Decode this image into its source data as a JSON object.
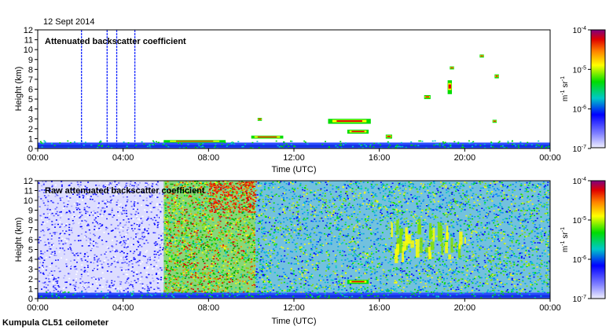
{
  "date_label": "12 Sept 2014",
  "footer_label": "Kumpula CL51 ceilometer",
  "colors": {
    "colormap": [
      "#f0f0ff",
      "#0000ff",
      "#00c8c8",
      "#00dd00",
      "#ffff00",
      "#ff8000",
      "#e00000",
      "#800080"
    ]
  },
  "chart_data": [
    {
      "type": "heatmap",
      "title": "Attenuated backscatter coefficient",
      "xlabel": "Time (UTC)",
      "ylabel": "Height (km)",
      "x_ticks": [
        "00:00",
        "04:00",
        "08:00",
        "12:00",
        "16:00",
        "20:00",
        "00:00"
      ],
      "y_ticks": [
        "0",
        "1",
        "2",
        "3",
        "4",
        "5",
        "6",
        "7",
        "8",
        "9",
        "10",
        "11",
        "12"
      ],
      "xlim": [
        0,
        24
      ],
      "ylim": [
        0,
        12
      ],
      "colorbar": {
        "scale": "log",
        "min_label": "10",
        "min_exp": "-7",
        "max_label": "10",
        "max_exp": "-4",
        "ticks": [
          {
            "base": "10",
            "exp": "-7",
            "value": 1e-07
          },
          {
            "base": "10",
            "exp": "-6",
            "value": 1e-06
          },
          {
            "base": "10",
            "exp": "-5",
            "value": 1e-05
          },
          {
            "base": "10",
            "exp": "-4",
            "value": 0.0001
          }
        ],
        "unit_a": "m",
        "unit_a_exp": "-1",
        "unit_b": "sr",
        "unit_b_exp": "-1"
      },
      "features": [
        {
          "kind": "boundary_layer",
          "t_start": 0,
          "t_end": 24,
          "h_top": 0.6
        },
        {
          "kind": "vertical_streak",
          "t": 2.05,
          "h_top": 12
        },
        {
          "kind": "vertical_streak",
          "t": 3.25,
          "h_top": 12
        },
        {
          "kind": "vertical_streak",
          "t": 3.7,
          "h_top": 12
        },
        {
          "kind": "vertical_streak",
          "t": 4.55,
          "h_top": 12
        },
        {
          "kind": "cloud",
          "t_start": 5.9,
          "t_end": 8.8,
          "h_low": 0.6,
          "h_high": 0.85
        },
        {
          "kind": "cloud",
          "t_start": 10.3,
          "t_end": 10.5,
          "h_low": 2.8,
          "h_high": 3.1
        },
        {
          "kind": "cloud",
          "t_start": 10.0,
          "t_end": 11.5,
          "h_low": 1.0,
          "h_high": 1.3
        },
        {
          "kind": "cloud",
          "t_start": 13.6,
          "t_end": 15.6,
          "h_low": 2.5,
          "h_high": 3.0
        },
        {
          "kind": "cloud",
          "t_start": 14.5,
          "t_end": 15.5,
          "h_low": 1.5,
          "h_high": 1.9
        },
        {
          "kind": "cloud",
          "t_start": 16.3,
          "t_end": 16.6,
          "h_low": 1.0,
          "h_high": 1.4
        },
        {
          "kind": "cloud",
          "t_start": 18.1,
          "t_end": 18.4,
          "h_low": 5.0,
          "h_high": 5.4
        },
        {
          "kind": "cloud",
          "t_start": 19.2,
          "t_end": 19.4,
          "h_low": 5.5,
          "h_high": 6.9
        },
        {
          "kind": "cloud",
          "t_start": 19.3,
          "t_end": 19.5,
          "h_low": 8.0,
          "h_high": 8.3
        },
        {
          "kind": "cloud",
          "t_start": 20.7,
          "t_end": 20.9,
          "h_low": 9.2,
          "h_high": 9.5
        },
        {
          "kind": "cloud",
          "t_start": 21.4,
          "t_end": 21.6,
          "h_low": 7.1,
          "h_high": 7.5
        },
        {
          "kind": "cloud",
          "t_start": 21.3,
          "t_end": 21.5,
          "h_low": 2.6,
          "h_high": 2.9
        }
      ]
    },
    {
      "type": "heatmap",
      "title": "Raw attenuated backscatter coefficient",
      "xlabel": "Time (UTC)",
      "ylabel": "Height (km)",
      "x_ticks": [
        "00:00",
        "04:00",
        "08:00",
        "12:00",
        "16:00",
        "20:00",
        "00:00"
      ],
      "y_ticks": [
        "0",
        "1",
        "2",
        "3",
        "4",
        "5",
        "6",
        "7",
        "8",
        "9",
        "10",
        "11",
        "12"
      ],
      "xlim": [
        0,
        24
      ],
      "ylim": [
        0,
        12
      ],
      "colorbar": {
        "scale": "log",
        "min_label": "10",
        "min_exp": "-7",
        "max_label": "10",
        "max_exp": "-4",
        "ticks": [
          {
            "base": "10",
            "exp": "-7",
            "value": 1e-07
          },
          {
            "base": "10",
            "exp": "-6",
            "value": 1e-06
          },
          {
            "base": "10",
            "exp": "-5",
            "value": 1e-05
          },
          {
            "base": "10",
            "exp": "-4",
            "value": 0.0001
          }
        ],
        "unit_a": "m",
        "unit_a_exp": "-1",
        "unit_b": "sr",
        "unit_b_exp": "-1"
      },
      "regimes": [
        {
          "t_start": 0,
          "t_end": 5.9,
          "level": "low_noise"
        },
        {
          "t_start": 5.9,
          "t_end": 10.2,
          "level": "high_noise"
        },
        {
          "t_start": 10.2,
          "t_end": 24,
          "level": "mid_noise"
        }
      ],
      "features": [
        {
          "kind": "boundary_layer",
          "t_start": 0,
          "t_end": 24,
          "h_top": 0.6
        },
        {
          "kind": "cloud",
          "t_start": 14.5,
          "t_end": 15.5,
          "h_low": 1.5,
          "h_high": 1.9
        },
        {
          "kind": "aerosol_plume",
          "t_start": 16.5,
          "t_end": 20.0,
          "h_low": 4.2,
          "h_high": 7.5
        }
      ]
    }
  ]
}
